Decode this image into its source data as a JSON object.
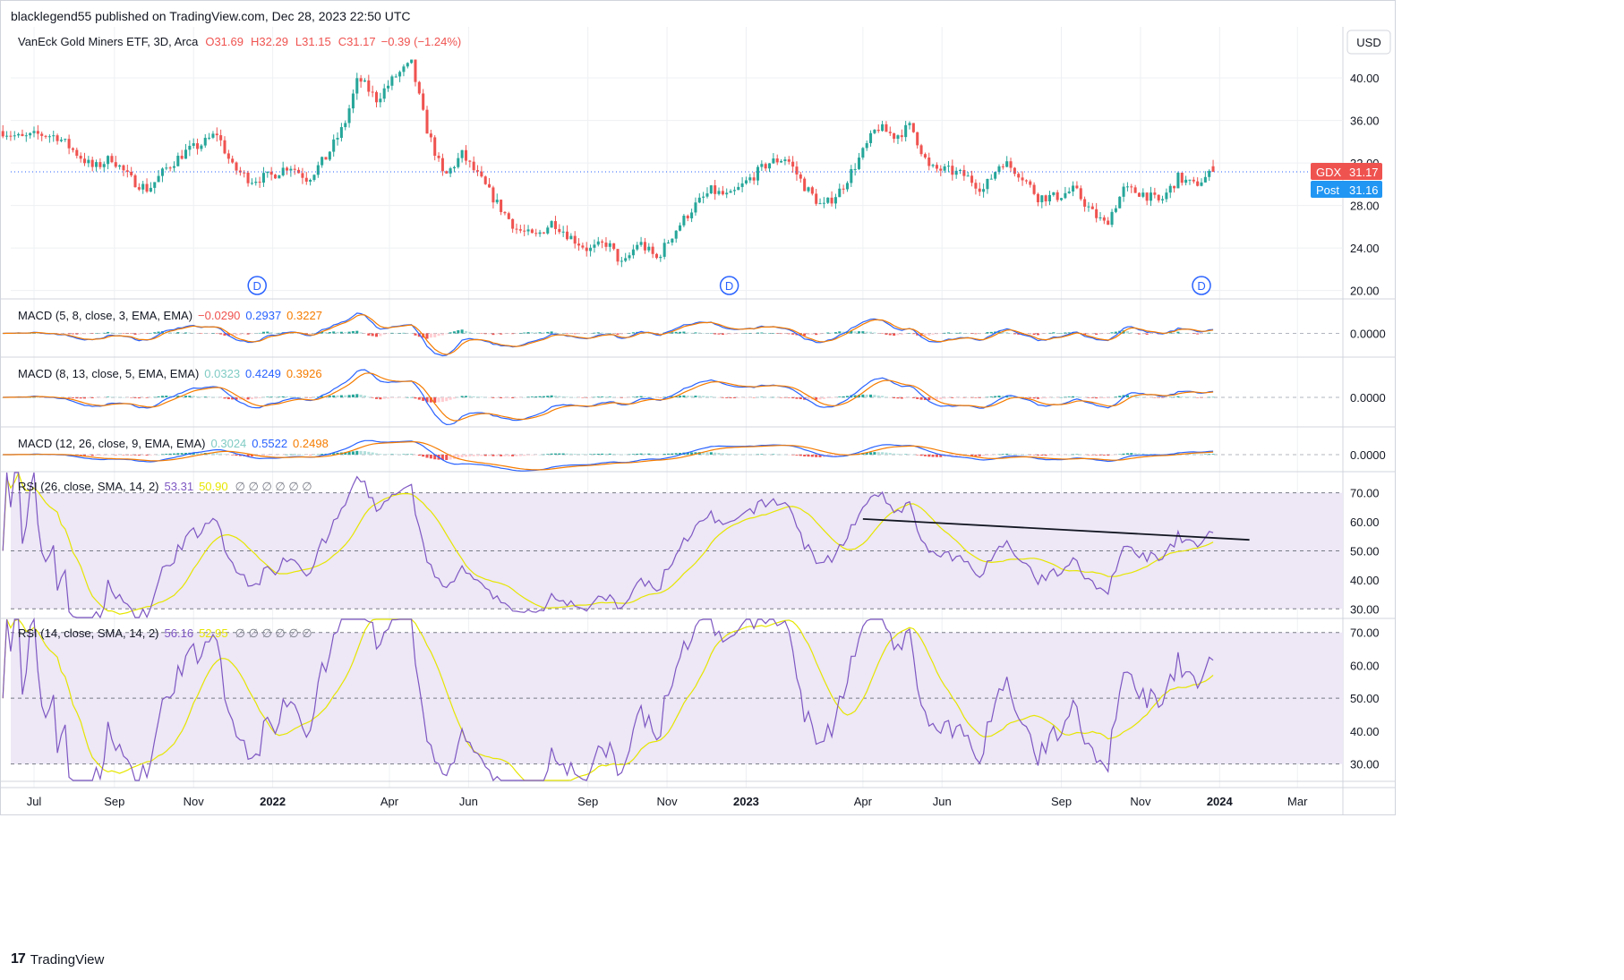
{
  "header": {
    "published": "blacklegend55 published on TradingView.com, Dec 28, 2023 22:50 UTC"
  },
  "footer": {
    "brand": "TradingView",
    "logo_glyph": "17"
  },
  "currency": "USD",
  "colors": {
    "up": "#26a69a",
    "down": "#ef5350",
    "macd": "#2962ff",
    "signal": "#f57c00",
    "rsi": "#7e57c2",
    "rsi_ma": "#e6e600",
    "rsi_band": "#ede7f6",
    "grid": "#eef0f3",
    "axis_text": "#131722",
    "trendline": "#131722",
    "dividend": "#2962ff"
  },
  "chart_data": [
    {
      "type": "candlestick",
      "title": "VanEck Gold Miners ETF, 3D, Arca",
      "ohlc_label": {
        "open": "O31.69",
        "high": "H32.29",
        "low": "L31.15",
        "close": "C31.17",
        "change": "−0.39 (−1.24%)"
      },
      "y_ticks": [
        "40.00",
        "36.00",
        "32.00",
        "28.00",
        "24.00",
        "20.00"
      ],
      "ylim": [
        19.3,
        44.8
      ],
      "last_price": {
        "symbol": "GDX",
        "value": "31.17",
        "post_label": "Post",
        "post_value": "31.16"
      },
      "dividend_markers": [
        "D",
        "D",
        "D"
      ],
      "dividend_dates": [
        "2021-12-20",
        "2022-12-19",
        "2023-12-18"
      ],
      "date_range": [
        "2021-06-07",
        "2023-12-28"
      ],
      "close_path": [
        [
          "2021-06-07",
          35.0
        ],
        [
          "2021-06-21",
          34.3
        ],
        [
          "2021-07-05",
          34.7
        ],
        [
          "2021-07-19",
          34.5
        ],
        [
          "2021-08-02",
          33.0
        ],
        [
          "2021-08-16",
          31.5
        ],
        [
          "2021-08-30",
          32.5
        ],
        [
          "2021-09-13",
          30.5
        ],
        [
          "2021-09-27",
          29.5
        ],
        [
          "2021-10-11",
          31.5
        ],
        [
          "2021-10-25",
          33.0
        ],
        [
          "2021-11-08",
          33.8
        ],
        [
          "2021-11-19",
          34.8
        ],
        [
          "2021-12-01",
          31.6
        ],
        [
          "2021-12-15",
          30.4
        ],
        [
          "2021-12-31",
          30.8
        ],
        [
          "2022-01-14",
          31.8
        ],
        [
          "2022-01-28",
          30.5
        ],
        [
          "2022-02-11",
          32.5
        ],
        [
          "2022-02-25",
          35.5
        ],
        [
          "2022-03-08",
          40.0
        ],
        [
          "2022-03-22",
          38.0
        ],
        [
          "2022-04-06",
          40.2
        ],
        [
          "2022-04-18",
          41.3
        ],
        [
          "2022-04-29",
          35.5
        ],
        [
          "2022-05-13",
          30.6
        ],
        [
          "2022-05-27",
          32.8
        ],
        [
          "2022-06-10",
          30.5
        ],
        [
          "2022-06-24",
          28.0
        ],
        [
          "2022-07-08",
          25.8
        ],
        [
          "2022-07-22",
          25.0
        ],
        [
          "2022-08-05",
          26.5
        ],
        [
          "2022-08-19",
          25.0
        ],
        [
          "2022-09-02",
          23.8
        ],
        [
          "2022-09-16",
          24.5
        ],
        [
          "2022-09-28",
          22.3
        ],
        [
          "2022-10-10",
          24.6
        ],
        [
          "2022-10-24",
          23.0
        ],
        [
          "2022-11-07",
          25.6
        ],
        [
          "2022-11-21",
          27.8
        ],
        [
          "2022-12-05",
          29.4
        ],
        [
          "2022-12-19",
          28.8
        ],
        [
          "2023-01-02",
          30.3
        ],
        [
          "2023-01-18",
          32.0
        ],
        [
          "2023-02-01",
          32.5
        ],
        [
          "2023-02-15",
          29.8
        ],
        [
          "2023-03-01",
          27.8
        ],
        [
          "2023-03-15",
          29.5
        ],
        [
          "2023-03-31",
          32.8
        ],
        [
          "2023-04-12",
          35.4
        ],
        [
          "2023-04-26",
          34.5
        ],
        [
          "2023-05-08",
          35.5
        ],
        [
          "2023-05-22",
          31.5
        ],
        [
          "2023-06-05",
          31.3
        ],
        [
          "2023-06-19",
          30.8
        ],
        [
          "2023-07-03",
          29.5
        ],
        [
          "2023-07-17",
          32.2
        ],
        [
          "2023-07-31",
          31.0
        ],
        [
          "2023-08-14",
          28.8
        ],
        [
          "2023-08-28",
          28.8
        ],
        [
          "2023-09-11",
          29.5
        ],
        [
          "2023-09-25",
          27.3
        ],
        [
          "2023-10-05",
          26.2
        ],
        [
          "2023-10-19",
          29.5
        ],
        [
          "2023-11-02",
          29.2
        ],
        [
          "2023-11-16",
          28.3
        ],
        [
          "2023-11-30",
          30.6
        ],
        [
          "2023-12-12",
          29.9
        ],
        [
          "2023-12-28",
          31.17
        ]
      ]
    },
    {
      "type": "line",
      "title": "MACD (5, 8, close, 3, EMA, EMA)",
      "values_label": [
        "−0.0290",
        "0.2937",
        "0.3227"
      ],
      "y_ticks": [
        "0.0000"
      ],
      "series": [
        "histogram",
        "macd",
        "signal"
      ]
    },
    {
      "type": "line",
      "title": "MACD (8, 13, close, 5, EMA, EMA)",
      "values_label": [
        "0.0323",
        "0.4249",
        "0.3926"
      ],
      "y_ticks": [
        "0.0000"
      ],
      "series": [
        "histogram",
        "macd",
        "signal"
      ]
    },
    {
      "type": "line",
      "title": "MACD (12, 26, close, 9, EMA, EMA)",
      "values_label": [
        "0.3024",
        "0.5522",
        "0.2498"
      ],
      "y_ticks": [
        "0.0000"
      ],
      "series": [
        "histogram",
        "macd",
        "signal"
      ]
    },
    {
      "type": "line",
      "title": "RSI (26, close, SMA, 14, 2)",
      "values_label": [
        "53.31",
        "50.90"
      ],
      "placeholders": "∅ ∅ ∅ ∅ ∅ ∅",
      "y_ticks": [
        "70.00",
        "60.00",
        "50.00",
        "40.00",
        "30.00"
      ],
      "ylim": [
        27,
        77
      ],
      "period": 26,
      "trendline": {
        "start": [
          "2023-04-01",
          61.0
        ],
        "end": [
          "2024-01-24",
          53.8
        ]
      }
    },
    {
      "type": "line",
      "title": "RSI (14, close, SMA, 14, 2)",
      "values_label": [
        "56.16",
        "52.95"
      ],
      "placeholders": "∅ ∅ ∅ ∅ ∅ ∅",
      "y_ticks": [
        "70.00",
        "60.00",
        "50.00",
        "40.00",
        "30.00"
      ],
      "ylim": [
        25,
        74
      ],
      "period": 14
    }
  ],
  "time_axis": {
    "labels": [
      {
        "text": "Jul",
        "date": "2021-07-01",
        "bold": false
      },
      {
        "text": "Sep",
        "date": "2021-09-01",
        "bold": false
      },
      {
        "text": "Nov",
        "date": "2021-11-01",
        "bold": false
      },
      {
        "text": "2022",
        "date": "2022-01-01",
        "bold": true
      },
      {
        "text": "Apr",
        "date": "2022-04-01",
        "bold": false
      },
      {
        "text": "Jun",
        "date": "2022-06-01",
        "bold": false
      },
      {
        "text": "Sep",
        "date": "2022-09-01",
        "bold": false
      },
      {
        "text": "Nov",
        "date": "2022-11-01",
        "bold": false
      },
      {
        "text": "2023",
        "date": "2023-01-01",
        "bold": true
      },
      {
        "text": "Apr",
        "date": "2023-04-01",
        "bold": false
      },
      {
        "text": "Jun",
        "date": "2023-06-01",
        "bold": false
      },
      {
        "text": "Sep",
        "date": "2023-09-01",
        "bold": false
      },
      {
        "text": "Nov",
        "date": "2023-11-01",
        "bold": false
      },
      {
        "text": "2024",
        "date": "2024-01-01",
        "bold": true
      },
      {
        "text": "Mar",
        "date": "2024-03-01",
        "bold": false
      }
    ]
  }
}
